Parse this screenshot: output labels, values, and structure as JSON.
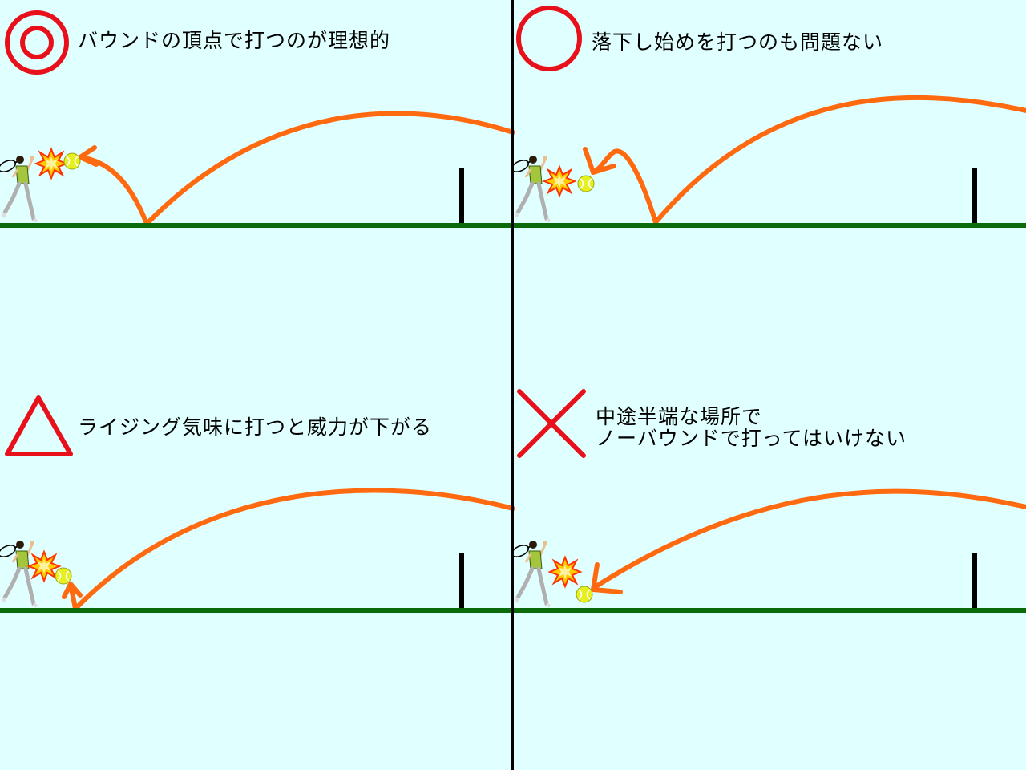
{
  "colors": {
    "background": "#e0ffff",
    "ground": "#0b6b0b",
    "divider": "#000000",
    "trajectory": "#ff6a10",
    "rating_mark": "#e8101a",
    "net": "#000000",
    "ball": "#e6f020",
    "impact": "#ffcc00"
  },
  "panels": [
    {
      "id": "apex",
      "rating": "double-circle",
      "caption_lines": [
        "バウンドの頂点で打つのが理想的"
      ]
    },
    {
      "id": "falling",
      "rating": "circle",
      "caption_lines": [
        "落下し始めを打つのも問題ない"
      ]
    },
    {
      "id": "rising",
      "rating": "triangle",
      "caption_lines": [
        "ライジング気味に打つと威力が下がる"
      ]
    },
    {
      "id": "no-bounce",
      "rating": "cross",
      "caption_lines": [
        "中途半端な場所で",
        "ノーバウンドで打ってはいけない"
      ]
    }
  ]
}
